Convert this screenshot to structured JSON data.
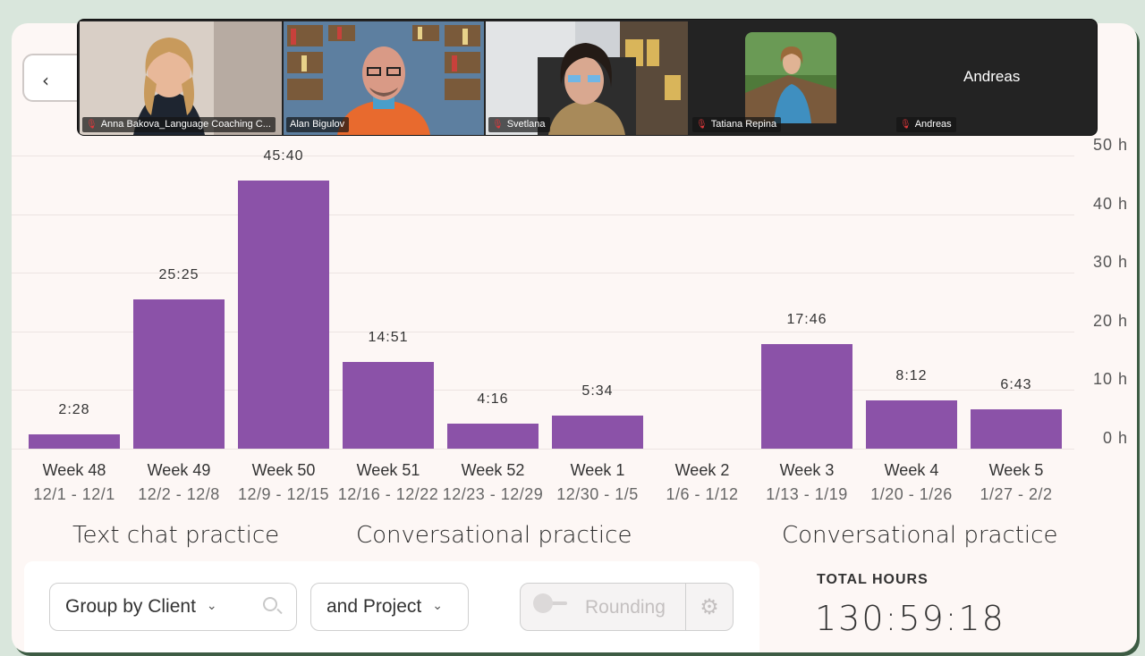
{
  "meeting": {
    "participants": [
      {
        "name": "Anna Bakova_Language Coaching C...",
        "muted": true,
        "video": true,
        "active": false
      },
      {
        "name": "Alan Bigulov",
        "muted": false,
        "video": true,
        "active": true
      },
      {
        "name": "Svetlana",
        "muted": true,
        "video": true,
        "active": false
      },
      {
        "name": "Tatiana Repina",
        "muted": true,
        "video": true,
        "active": false
      },
      {
        "name": "Andreas",
        "muted": true,
        "video": false,
        "active": false,
        "display_label": "Andreas"
      }
    ]
  },
  "nav": {
    "back_icon": "chevron-left-icon"
  },
  "chart_data": {
    "type": "bar",
    "categories": [
      "Week 48",
      "Week 49",
      "Week 50",
      "Week 51",
      "Week 52",
      "Week 1",
      "Week 2",
      "Week 3",
      "Week 4",
      "Week 5"
    ],
    "date_ranges": [
      "12/1 - 12/1",
      "12/2 - 12/8",
      "12/9 - 12/15",
      "12/16 - 12/22",
      "12/23 - 12/29",
      "12/30 - 1/5",
      "1/6 - 1/12",
      "1/13 - 1/19",
      "1/20 - 1/26",
      "1/27 - 2/2"
    ],
    "values_hours": [
      2.467,
      25.417,
      45.667,
      14.85,
      4.267,
      5.567,
      0,
      17.767,
      8.2,
      6.717
    ],
    "value_labels": [
      "2:28",
      "25:25",
      "45:40",
      "14:51",
      "4:16",
      "5:34",
      "",
      "17:46",
      "8:12",
      "6:43"
    ],
    "y_ticks": [
      "0 h",
      "10 h",
      "20 h",
      "30 h",
      "40 h",
      "50 h"
    ],
    "ylim": [
      0,
      50
    ],
    "grid": true,
    "bar_color": "#8b52a8"
  },
  "annotations": [
    "Text chat practice",
    "Conversational  practice",
    "Conversational  practice"
  ],
  "controls": {
    "group_by_label": "Group by Client",
    "and_project_label": "and Project",
    "rounding_label": "Rounding",
    "rounding_enabled": false
  },
  "summary": {
    "total_title": "TOTAL HOURS",
    "total_value": "130:59:18"
  }
}
